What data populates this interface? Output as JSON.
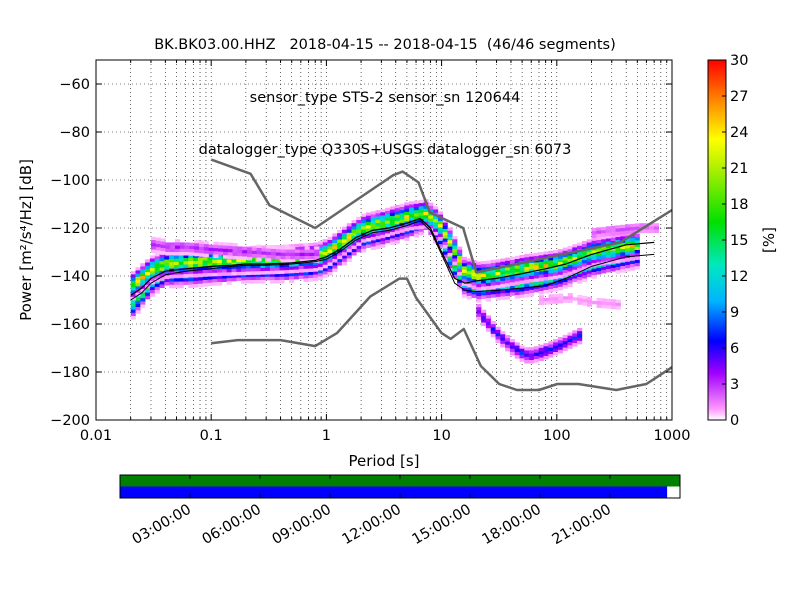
{
  "title_lines": [
    "BK.BK03.00.HHZ   2018-04-15 -- 2018-04-15  (46/46 segments)",
    "sensor_type STS-2 sensor_sn 120644",
    "datalogger_type Q330S+USGS datalogger_sn 6073"
  ],
  "chart_data": {
    "type": "heatmap",
    "title": "BK.BK03.00.HHZ   2018-04-15 -- 2018-04-15  (46/46 segments)",
    "xlabel": "Period [s]",
    "ylabel": "Power [m²/s⁴/Hz] [dB]",
    "x_scale": "log",
    "xlim": [
      0.01,
      1000
    ],
    "ylim": [
      -200,
      -50
    ],
    "x_ticks": [
      {
        "value": 0.01,
        "label": "0.01"
      },
      {
        "value": 0.1,
        "label": "0.1"
      },
      {
        "value": 1,
        "label": "1"
      },
      {
        "value": 10,
        "label": "10"
      },
      {
        "value": 100,
        "label": "100"
      },
      {
        "value": 1000,
        "label": "1000"
      }
    ],
    "y_ticks": [
      -60,
      -80,
      -100,
      -120,
      -140,
      -160,
      -180,
      -200
    ],
    "grid": true,
    "colorbar": {
      "label": "[%]",
      "min": 0,
      "max": 30,
      "ticks": [
        0,
        3,
        6,
        9,
        12,
        15,
        18,
        21,
        24,
        27,
        30
      ],
      "colormap": "pqlx"
    },
    "noise_models": [
      {
        "name": "NHNM",
        "color": "#666666",
        "x": [
          0.1,
          0.22,
          0.32,
          0.8,
          3.8,
          4.6,
          6.3,
          7.9,
          15.4,
          20,
          354.8,
          1000
        ],
        "y": [
          -91.5,
          -97.4,
          -110.5,
          -120,
          -98,
          -96.5,
          -101,
          -113.5,
          -120,
          -138.5,
          -126,
          -112.5
        ]
      },
      {
        "name": "NLNM",
        "color": "#666666",
        "x": [
          0.1,
          0.17,
          0.4,
          0.8,
          1.24,
          2.4,
          4.3,
          5,
          6,
          10,
          12,
          15.6,
          21.9,
          31.6,
          45,
          70,
          101,
          154,
          328,
          600,
          1000
        ],
        "y": [
          -168,
          -166.7,
          -166.7,
          -169.2,
          -163.7,
          -148.6,
          -141.1,
          -141.1,
          -149,
          -163.8,
          -166.2,
          -162.1,
          -177.5,
          -185,
          -187.5,
          -187.5,
          -185,
          -185,
          -187.5,
          -185,
          -178
        ]
      }
    ],
    "mean_curve": {
      "color": "#000000",
      "x": [
        0.02,
        0.025,
        0.03,
        0.04,
        0.06,
        0.1,
        0.15,
        0.2,
        0.3,
        0.5,
        0.8,
        1.0,
        1.3,
        1.8,
        2.5,
        3.5,
        5,
        6.5,
        8,
        10,
        13,
        16,
        20,
        30,
        50,
        80,
        120,
        200,
        400,
        700
      ],
      "y": [
        -148,
        -145,
        -141,
        -138,
        -137,
        -136,
        -135.5,
        -135,
        -135,
        -134.5,
        -133.5,
        -132,
        -129,
        -124,
        -121,
        -120,
        -118,
        -116,
        -120,
        -130,
        -141,
        -143,
        -142,
        -141,
        -139,
        -137,
        -135,
        -131,
        -127,
        -126
      ]
    },
    "mode_curve": {
      "color": "#000000",
      "x": [
        0.02,
        0.025,
        0.03,
        0.04,
        0.06,
        0.1,
        0.15,
        0.2,
        0.3,
        0.5,
        0.8,
        1.0,
        1.3,
        1.8,
        2.5,
        3.5,
        5,
        6.5,
        8,
        10,
        13,
        16,
        20,
        30,
        50,
        80,
        120,
        200,
        400,
        700
      ],
      "y": [
        -150,
        -147,
        -143,
        -139.5,
        -138,
        -137,
        -136,
        -135.5,
        -135.5,
        -135,
        -134,
        -133,
        -130,
        -125,
        -122,
        -121,
        -119,
        -117,
        -121,
        -131,
        -143,
        -146,
        -146.5,
        -146,
        -145,
        -144,
        -141,
        -136,
        -132,
        -131
      ]
    },
    "density_bands": [
      {
        "x": [
          0.02,
          0.03,
          0.04,
          0.06,
          0.1,
          0.2,
          0.4,
          0.8,
          1,
          1.5,
          2,
          3,
          5,
          7,
          9,
          12,
          15,
          20,
          30,
          50,
          100,
          200,
          500
        ],
        "y": [
          -152,
          -142,
          -139,
          -139,
          -138,
          -137,
          -137,
          -136,
          -134,
          -128,
          -124,
          -122,
          -119,
          -116,
          -122,
          -135,
          -143,
          -145,
          -144,
          -143,
          -140,
          -135,
          -131
        ],
        "value": 14
      },
      {
        "x": [
          0.02,
          0.03,
          0.04,
          0.06,
          0.1,
          0.2,
          0.4,
          0.8,
          1,
          1.5,
          2,
          3,
          5,
          7,
          9,
          12,
          15,
          20,
          30,
          50,
          100,
          200,
          500
        ],
        "y": [
          -144,
          -137,
          -135,
          -134.5,
          -134,
          -133.5,
          -133,
          -132,
          -130,
          -124,
          -120,
          -118,
          -115,
          -114,
          -118,
          -128,
          -138,
          -140,
          -139,
          -137,
          -135,
          -130,
          -127
        ],
        "value": 20
      },
      {
        "x": [
          0.03,
          0.04,
          0.06,
          0.1,
          0.2,
          0.4,
          0.8
        ],
        "y": [
          -127,
          -128,
          -128,
          -129,
          -130,
          -131,
          -131
        ],
        "value": 3
      },
      {
        "x": [
          20,
          30,
          40,
          50,
          60,
          80,
          100,
          150
        ],
        "y": [
          -155,
          -165,
          -170,
          -173,
          -173,
          -171,
          -169,
          -165
        ],
        "value": 6
      },
      {
        "x": [
          200,
          300,
          500,
          700
        ],
        "y": [
          -122,
          -121,
          -120,
          -120
        ],
        "value": 2
      },
      {
        "x": [
          70,
          120,
          200,
          350
        ],
        "y": [
          -150,
          -149,
          -151,
          -152
        ],
        "value": 1
      }
    ],
    "time_axis": {
      "labels": [
        "03:00:00",
        "06:00:00",
        "09:00:00",
        "12:00:00",
        "15:00:00",
        "18:00:00",
        "21:00:00"
      ],
      "available_fraction": 1.0,
      "processed_fraction": 0.977,
      "available_color": "#008000",
      "processed_color": "#0000ff"
    }
  }
}
